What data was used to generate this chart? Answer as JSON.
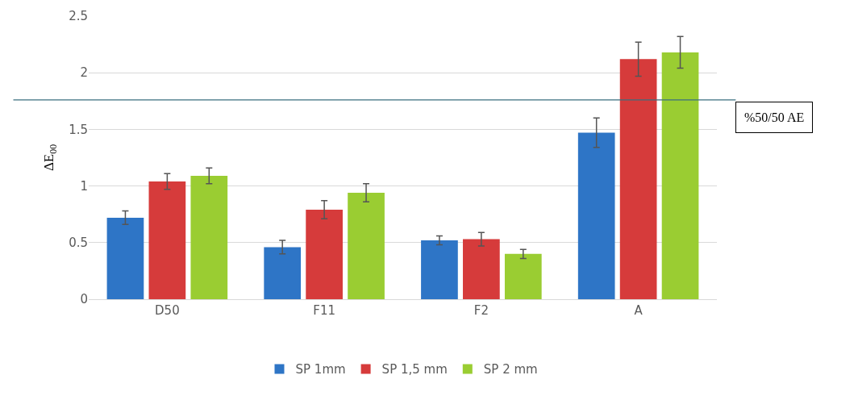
{
  "chart_data": {
    "type": "bar",
    "ylabel": "ΔE$_{00}$",
    "categories": [
      "D50",
      "F11",
      "F2",
      "A"
    ],
    "series": [
      {
        "name": "SP 1mm",
        "color": "#2e75c6",
        "values": [
          0.72,
          0.46,
          0.52,
          1.47
        ],
        "errors": [
          0.06,
          0.06,
          0.04,
          0.13
        ]
      },
      {
        "name": "SP 1,5 mm",
        "color": "#d63b3b",
        "values": [
          1.04,
          0.79,
          0.53,
          2.12
        ],
        "errors": [
          0.07,
          0.08,
          0.06,
          0.15
        ]
      },
      {
        "name": "SP 2 mm",
        "color": "#9acd32",
        "values": [
          1.09,
          0.94,
          0.4,
          2.18
        ],
        "errors": [
          0.07,
          0.08,
          0.04,
          0.14
        ]
      }
    ],
    "ylim": [
      0,
      2.5
    ],
    "yticks": [
      0,
      0.5,
      1,
      1.5,
      2,
      2.5
    ],
    "grid": "y",
    "legend": "bottom",
    "ref_lines": [
      {
        "axis": "y",
        "value": 1.76,
        "label": "%50/50 AE",
        "color": "#3a6f7f"
      }
    ]
  }
}
